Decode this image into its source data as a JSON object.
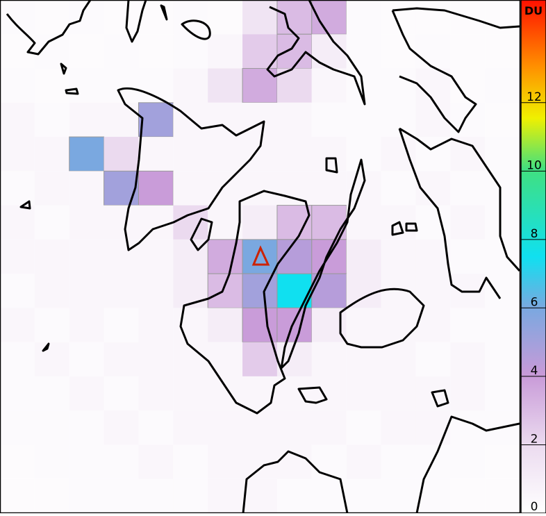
{
  "map": {
    "so2_grid": [
      [
        0.3,
        0.2,
        0.3,
        0.2,
        0.2,
        0.3,
        0.2,
        1.5,
        3,
        3.5,
        0.3,
        0.2,
        0.2,
        0.2,
        0.2
      ],
      [
        0.2,
        0.3,
        0.2,
        0.3,
        0.2,
        0.3,
        0.5,
        2.5,
        3,
        1,
        0.3,
        0.2,
        0.3,
        0.2,
        0.2
      ],
      [
        0.3,
        0.2,
        0.3,
        0.3,
        0.3,
        0.5,
        1.5,
        3.5,
        2,
        0.5,
        0.3,
        0.3,
        0.5,
        0.2,
        0.3
      ],
      [
        0.5,
        0.3,
        0.5,
        0.5,
        5,
        0.5,
        0.5,
        0.5,
        0.5,
        0.3,
        0.3,
        0.3,
        0.5,
        0.3,
        0.2
      ],
      [
        0.5,
        0.5,
        6,
        2,
        0.5,
        0.5,
        0.5,
        0.5,
        0.5,
        0.5,
        0.3,
        0.5,
        0.3,
        0.5,
        0.3
      ],
      [
        0.3,
        0.5,
        0.5,
        5,
        4,
        0.5,
        0.5,
        0.5,
        0.5,
        0.5,
        0.5,
        0.3,
        0.5,
        0.3,
        0.3
      ],
      [
        0.5,
        0.3,
        0.5,
        0.5,
        0.5,
        2,
        0.5,
        1,
        3,
        3,
        0.5,
        0.5,
        0.3,
        0.5,
        0.3
      ],
      [
        0.5,
        0.5,
        0.5,
        0.5,
        0.5,
        1,
        3.5,
        6,
        4.5,
        4,
        1,
        0.5,
        0.5,
        0.3,
        0.3
      ],
      [
        0.3,
        0.5,
        0.5,
        0.5,
        0.5,
        1,
        3,
        5,
        7.5,
        4.5,
        1,
        0.5,
        0.5,
        0.5,
        0.3
      ],
      [
        0.5,
        0.3,
        0.5,
        0.3,
        0.5,
        0.5,
        1,
        4,
        4,
        1,
        0.5,
        0.5,
        0.5,
        0.3,
        0.3
      ],
      [
        0.3,
        0.5,
        0.3,
        0.5,
        0.5,
        0.5,
        0.5,
        2.5,
        1,
        0.5,
        0.5,
        0.5,
        0.3,
        0.5,
        0.3
      ],
      [
        0.3,
        0.3,
        0.5,
        0.3,
        0.5,
        0.5,
        0.5,
        0.5,
        0.5,
        0.5,
        0.5,
        0.5,
        0.5,
        0.5,
        0.3
      ],
      [
        0.3,
        0.3,
        0.3,
        0.5,
        0.3,
        0.5,
        0.5,
        0.5,
        0.5,
        0.5,
        0.3,
        0.5,
        0.5,
        0.3,
        0.3
      ],
      [
        0.2,
        0.3,
        0.3,
        0.3,
        0.5,
        0.3,
        0.5,
        0.5,
        0.5,
        0.3,
        0.5,
        0.3,
        0.3,
        0.3,
        0.2
      ],
      [
        0.2,
        0.2,
        0.3,
        0.3,
        0.3,
        0.3,
        0.5,
        0.5,
        0.3,
        0.3,
        0.3,
        0.3,
        0.3,
        0.2,
        0.2
      ]
    ]
  },
  "colorbar": {
    "label": "DU",
    "lim": [
      0,
      15
    ],
    "ticks": [
      0,
      2,
      4,
      6,
      8,
      10,
      12
    ]
  }
}
